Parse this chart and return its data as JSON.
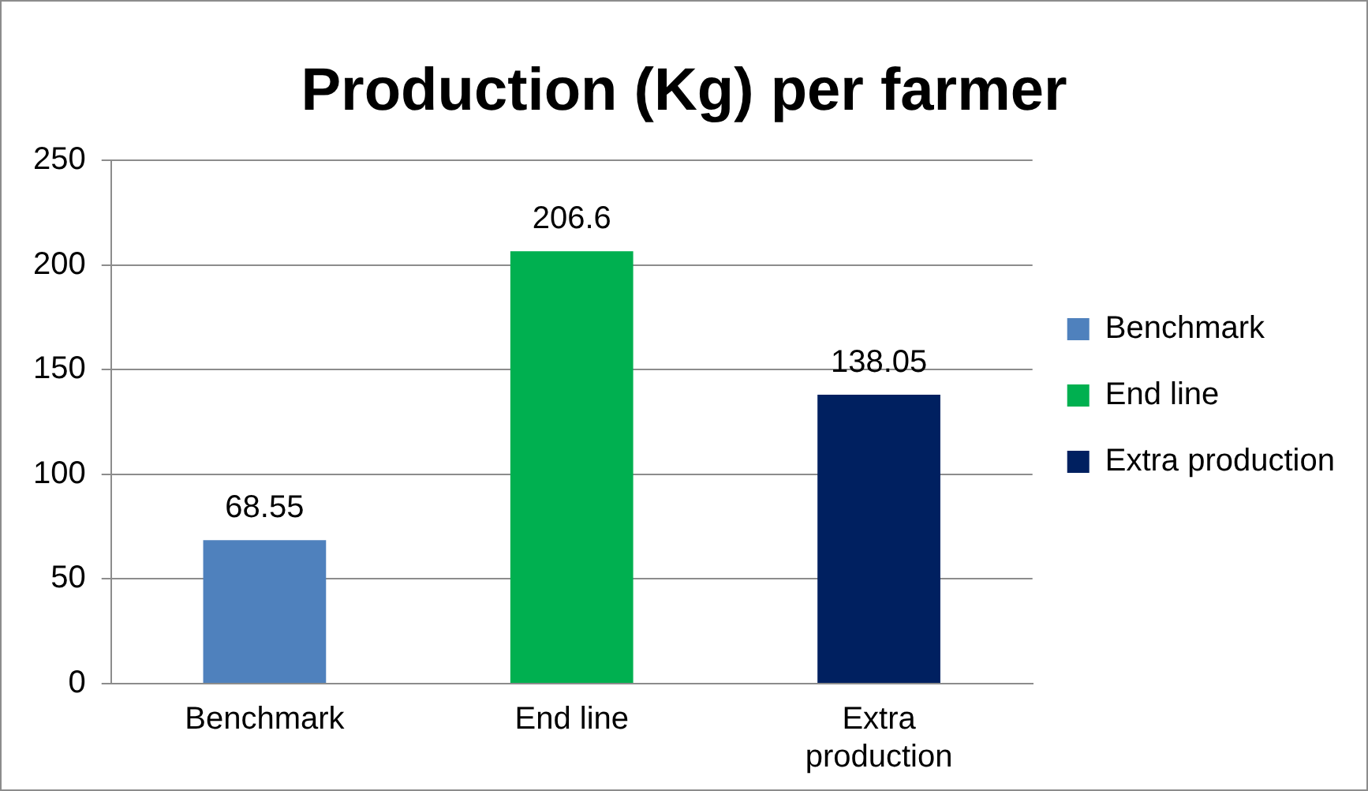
{
  "chart_data": {
    "type": "bar",
    "title": "Production (Kg) per farmer",
    "categories": [
      "Benchmark",
      "End line",
      "Extra production"
    ],
    "series": [
      {
        "name": "Benchmark",
        "color": "#4f81bd",
        "values": [
          68.55,
          null,
          null
        ]
      },
      {
        "name": "End line",
        "color": "#00b050",
        "values": [
          null,
          206.6,
          null
        ]
      },
      {
        "name": "Extra production",
        "color": "#002060",
        "values": [
          null,
          null,
          138.05
        ]
      }
    ],
    "ylim": [
      0,
      250
    ],
    "yticks": [
      0,
      50,
      100,
      150,
      200,
      250
    ],
    "grid": "y",
    "legend": "right",
    "data_labels": true
  }
}
